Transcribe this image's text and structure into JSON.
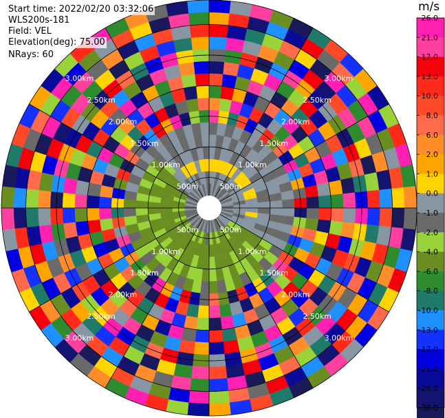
{
  "header": {
    "start_time": "Start time: 2022/02/20 03:32:06",
    "instrument": "WLS200s-181",
    "field": "Field: VEL",
    "elevation": "Elevation(deg): 75.00",
    "nrays": "NRays: 60"
  },
  "chart_data": {
    "type": "heatmap",
    "projection": "polar",
    "description_units": "m/s",
    "title": "",
    "n_rays": 60,
    "n_gates": 16,
    "max_range_m": 3400,
    "range_rings_m": [
      500,
      1000,
      1500,
      2000,
      2500,
      3000
    ],
    "range_ring_labels": [
      "500m",
      "1.00km",
      "1.50km",
      "2.00km",
      "2.50km",
      "3.00km"
    ],
    "colorbar": {
      "unit": "m/s",
      "tick_labels": [
        "26.0",
        "21.0",
        "17.0",
        "13.0",
        "10.0",
        "8.0",
        "6.0",
        "2.0",
        "1.0",
        "0.0",
        "-1.0",
        "-2.0",
        "-4.0",
        "-6.0",
        "-8.0",
        "-10.0",
        "-13.0",
        "-17.0",
        "-21.0",
        "-26.0",
        "-30.0"
      ],
      "bins": [
        {
          "min": 26,
          "max": 30,
          "color": "#ff1fb0"
        },
        {
          "min": 21,
          "max": 26,
          "color": "#ff3f9f"
        },
        {
          "min": 17,
          "max": 21,
          "color": "#f5000a"
        },
        {
          "min": 13,
          "max": 17,
          "color": "#ff2a1a"
        },
        {
          "min": 10,
          "max": 13,
          "color": "#ff4a2a"
        },
        {
          "min": 8,
          "max": 10,
          "color": "#ff6a4a"
        },
        {
          "min": 6,
          "max": 8,
          "color": "#ff8e2a"
        },
        {
          "min": 2,
          "max": 6,
          "color": "#ffa500"
        },
        {
          "min": 1,
          "max": 2,
          "color": "#ffd400"
        },
        {
          "min": 0,
          "max": 1,
          "color": "#8896a4"
        },
        {
          "min": -1,
          "max": 0,
          "color": "#6a6a6a"
        },
        {
          "min": -2,
          "max": -1,
          "color": "#9ad23a"
        },
        {
          "min": -4,
          "max": -2,
          "color": "#6b8e23"
        },
        {
          "min": -6,
          "max": -4,
          "color": "#2e8b2e"
        },
        {
          "min": -8,
          "max": -6,
          "color": "#1f7a6a"
        },
        {
          "min": -10,
          "max": -8,
          "color": "#1e90ff"
        },
        {
          "min": -13,
          "max": -10,
          "color": "#1432ff"
        },
        {
          "min": -17,
          "max": -13,
          "color": "#0000e0"
        },
        {
          "min": -21,
          "max": -17,
          "color": "#0a0a9a"
        },
        {
          "min": -26,
          "max": -21,
          "color": "#141470"
        },
        {
          "min": -30,
          "max": -26,
          "color": "#1a1a5a"
        }
      ]
    },
    "velocity_bin_index_by_ring": [
      [
        10,
        9,
        10,
        9,
        10,
        9,
        10,
        10,
        9,
        10,
        9,
        10,
        9,
        9,
        10,
        9,
        10,
        9,
        10,
        9,
        9,
        9,
        9,
        10,
        9,
        10,
        10,
        9,
        10,
        9,
        9,
        10,
        9,
        10,
        9,
        10,
        9,
        10,
        9,
        10,
        9,
        10,
        10,
        10,
        9,
        10,
        9,
        10,
        9,
        10,
        9,
        10,
        9,
        10,
        9,
        10,
        9,
        10,
        9,
        10
      ],
      [
        9,
        9,
        10,
        9,
        9,
        10,
        9,
        9,
        10,
        9,
        9,
        9,
        9,
        10,
        9,
        9,
        9,
        10,
        9,
        9,
        11,
        11,
        12,
        12,
        11,
        12,
        12,
        11,
        12,
        11,
        10,
        12,
        11,
        12,
        11,
        12,
        12,
        12,
        11,
        12,
        12,
        11,
        12,
        12,
        11,
        12,
        12,
        11,
        12,
        12,
        10,
        9,
        9,
        10,
        9,
        9,
        10,
        9,
        9,
        10
      ],
      [
        8,
        8,
        8,
        8,
        8,
        8,
        9,
        8,
        8,
        8,
        9,
        8,
        8,
        9,
        9,
        9,
        8,
        9,
        9,
        9,
        12,
        12,
        12,
        12,
        12,
        12,
        12,
        12,
        12,
        12,
        12,
        12,
        12,
        12,
        12,
        12,
        12,
        12,
        12,
        12,
        12,
        12,
        12,
        12,
        12,
        12,
        12,
        12,
        12,
        12,
        12,
        12,
        9,
        9,
        8,
        8,
        8,
        9,
        8,
        8
      ],
      [
        9,
        10,
        9,
        9,
        10,
        9,
        10,
        9,
        9,
        10,
        9,
        9,
        10,
        10,
        9,
        10,
        9,
        9,
        10,
        9,
        12,
        12,
        11,
        12,
        12,
        11,
        12,
        12,
        12,
        11,
        12,
        12,
        11,
        12,
        12,
        11,
        12,
        12,
        11,
        12,
        11,
        12,
        12,
        11,
        12,
        12,
        11,
        12,
        12,
        11,
        12,
        12,
        11,
        9,
        10,
        9,
        9,
        10,
        9,
        10
      ],
      [
        9,
        10,
        9,
        10,
        9,
        10,
        9,
        9,
        10,
        9,
        10,
        9,
        9,
        10,
        9,
        9,
        10,
        9,
        10,
        9,
        11,
        12,
        11,
        12,
        11,
        11,
        12,
        11,
        12,
        11,
        12,
        11,
        11,
        12,
        11,
        12,
        11,
        11,
        12,
        11,
        12,
        12,
        11,
        12,
        11,
        12,
        11,
        12,
        11,
        12,
        11,
        12,
        10,
        9,
        10,
        9,
        10,
        9,
        10,
        9
      ],
      [
        10,
        9,
        10,
        9,
        10,
        9,
        10,
        9,
        10,
        9,
        10,
        9,
        10,
        9,
        10,
        9,
        10,
        9,
        10,
        9,
        10,
        11,
        10,
        12,
        11,
        10,
        12,
        11,
        10,
        12,
        10,
        11,
        12,
        10,
        12,
        11,
        10,
        12,
        10,
        11,
        12,
        10,
        12,
        11,
        10,
        12,
        10,
        9,
        10,
        9,
        10,
        9,
        10,
        9,
        10,
        9,
        10,
        9,
        10,
        9
      ],
      [
        1,
        8,
        14,
        4,
        17,
        9,
        3,
        12,
        5,
        18,
        0,
        15,
        7,
        10,
        2,
        19,
        11,
        6,
        16,
        13,
        4,
        1,
        9,
        14,
        8,
        17,
        3,
        20,
        12,
        5,
        10,
        18,
        2,
        15,
        7,
        0,
        19,
        11,
        13,
        6,
        16,
        1,
        9,
        4,
        14,
        8,
        17,
        12,
        3,
        20,
        5,
        10,
        18,
        15,
        2,
        7,
        0,
        19,
        11,
        13
      ],
      [
        6,
        11,
        0,
        16,
        3,
        19,
        9,
        13,
        1,
        8,
        14,
        4,
        17,
        2,
        20,
        10,
        12,
        5,
        15,
        7,
        18,
        3,
        11,
        0,
        16,
        6,
        19,
        9,
        13,
        1,
        8,
        14,
        4,
        17,
        2,
        20,
        10,
        12,
        5,
        15,
        7,
        18,
        3,
        11,
        0,
        16,
        6,
        19,
        9,
        13,
        1,
        8,
        14,
        4,
        17,
        2,
        20,
        10,
        12,
        5
      ],
      [
        13,
        2,
        7,
        18,
        10,
        5,
        15,
        0,
        20,
        11,
        6,
        16,
        1,
        9,
        14,
        3,
        19,
        8,
        12,
        4,
        17,
        13,
        2,
        7,
        18,
        10,
        5,
        15,
        0,
        20,
        11,
        6,
        16,
        1,
        9,
        14,
        3,
        19,
        8,
        12,
        4,
        17,
        13,
        2,
        7,
        18,
        10,
        5,
        15,
        0,
        20,
        11,
        6,
        16,
        1,
        9,
        14,
        3,
        19,
        8
      ],
      [
        4,
        17,
        12,
        1,
        9,
        20,
        6,
        14,
        3,
        16,
        10,
        0,
        18,
        7,
        13,
        5,
        11,
        2,
        19,
        15,
        8,
        4,
        17,
        12,
        1,
        9,
        20,
        6,
        14,
        3,
        16,
        10,
        0,
        18,
        7,
        13,
        5,
        11,
        2,
        19,
        15,
        8,
        4,
        17,
        12,
        1,
        9,
        20,
        6,
        14,
        3,
        16,
        10,
        0,
        18,
        7,
        13,
        5,
        11,
        2
      ],
      [
        19,
        5,
        16,
        8,
        0,
        13,
        11,
        2,
        18,
        7,
        4,
        15,
        12,
        20,
        1,
        9,
        6,
        17,
        3,
        10,
        14,
        19,
        5,
        16,
        8,
        0,
        13,
        11,
        2,
        18,
        7,
        4,
        15,
        12,
        20,
        1,
        9,
        6,
        17,
        3,
        10,
        14,
        19,
        5,
        16,
        8,
        0,
        13,
        11,
        2,
        18,
        7,
        4,
        15,
        12,
        20,
        1,
        9,
        6,
        17
      ],
      [
        10,
        13,
        3,
        20,
        15,
        1,
        7,
        18,
        9,
        12,
        19,
        2,
        5,
        14,
        17,
        0,
        8,
        11,
        4,
        16,
        6,
        10,
        13,
        3,
        20,
        15,
        1,
        7,
        18,
        9,
        12,
        19,
        2,
        5,
        14,
        17,
        0,
        8,
        11,
        4,
        16,
        6,
        10,
        13,
        3,
        20,
        15,
        1,
        7,
        18,
        9,
        12,
        19,
        2,
        5,
        14,
        17,
        0,
        8,
        11
      ],
      [
        15,
        0,
        9,
        6,
        12,
        17,
        2,
        19,
        4,
        1,
        13,
        8,
        20,
        11,
        3,
        16,
        14,
        7,
        18,
        5,
        10,
        15,
        0,
        9,
        6,
        12,
        17,
        2,
        19,
        4,
        1,
        13,
        8,
        20,
        11,
        3,
        16,
        14,
        7,
        18,
        5,
        10,
        15,
        0,
        9,
        6,
        12,
        17,
        2,
        19,
        4,
        1,
        13,
        8,
        20,
        11,
        3,
        16,
        14,
        7
      ],
      [
        2,
        18,
        14,
        11,
        5,
        8,
        20,
        0,
        16,
        13,
        1,
        10,
        6,
        19,
        15,
        4,
        9,
        3,
        12,
        17,
        7,
        2,
        18,
        14,
        11,
        5,
        8,
        20,
        0,
        16,
        13,
        1,
        10,
        6,
        19,
        15,
        4,
        9,
        3,
        12,
        17,
        7,
        2,
        18,
        14,
        11,
        5,
        8,
        20,
        0,
        16,
        13,
        1,
        10,
        6,
        19,
        15,
        4,
        9,
        3
      ],
      [
        7,
        3,
        19,
        15,
        18,
        2,
        10,
        5,
        11,
        0,
        17,
        12,
        9,
        4,
        8,
        20,
        1,
        13,
        6,
        14,
        16,
        7,
        3,
        19,
        15,
        18,
        2,
        10,
        5,
        11,
        0,
        17,
        12,
        9,
        4,
        8,
        20,
        1,
        13,
        6,
        14,
        16,
        7,
        3,
        19,
        15,
        18,
        2,
        10,
        5,
        11,
        0,
        17,
        12,
        9,
        4,
        8,
        20,
        1,
        13
      ],
      [
        17,
        9,
        1,
        12,
        20,
        14,
        4,
        16,
        7,
        18,
        11,
        3,
        0,
        13,
        6,
        10,
        19,
        15,
        2,
        8,
        5,
        17,
        9,
        1,
        12,
        20,
        14,
        4,
        16,
        7,
        18,
        11,
        3,
        0,
        13,
        6,
        10,
        19,
        15,
        2,
        8,
        5,
        17,
        9,
        1,
        12,
        20,
        14,
        4,
        16,
        7,
        18,
        11,
        3,
        0,
        13,
        6,
        10,
        19,
        15
      ]
    ]
  }
}
